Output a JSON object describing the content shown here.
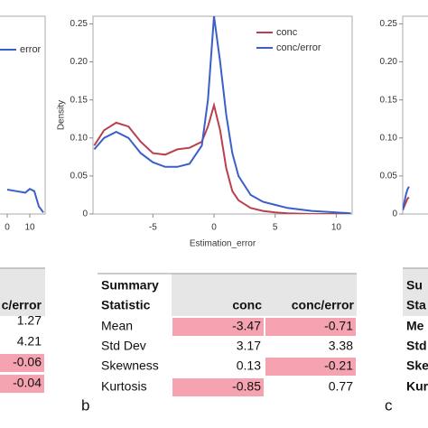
{
  "chart_data": [
    {
      "type": "line",
      "x": [
        0,
        4,
        8,
        10,
        12,
        14,
        16
      ],
      "series": [
        {
          "name": "error",
          "color": "#3a5fc8",
          "values": [
            0.032,
            0.03,
            0.028,
            0.033,
            0.03,
            0.01,
            0.002
          ]
        }
      ],
      "xlim": [
        -11.2,
        16.8
      ],
      "ylim": [
        0,
        0.26
      ],
      "xticks": [
        0,
        10
      ],
      "yticks": []
    },
    {
      "type": "line",
      "x_label": "Estimation_error",
      "y_label": "Density",
      "x": [
        -9.8,
        -9,
        -8,
        -7,
        -6,
        -5,
        -4,
        -3,
        -2,
        -1,
        -0.5,
        0,
        0.5,
        1,
        1.5,
        2,
        3,
        4,
        5,
        6,
        8,
        10,
        11.2
      ],
      "series": [
        {
          "name": "conc",
          "color": "#b8404f",
          "values": [
            0.09,
            0.11,
            0.12,
            0.115,
            0.095,
            0.08,
            0.078,
            0.085,
            0.087,
            0.095,
            0.115,
            0.143,
            0.11,
            0.06,
            0.03,
            0.018,
            0.008,
            0.004,
            0.002,
            0.001,
            0,
            0,
            0
          ]
        },
        {
          "name": "conc/error",
          "color": "#3a5fc8",
          "values": [
            0.085,
            0.1,
            0.108,
            0.1,
            0.08,
            0.068,
            0.062,
            0.062,
            0.066,
            0.09,
            0.15,
            0.26,
            0.2,
            0.13,
            0.08,
            0.05,
            0.025,
            0.016,
            0.012,
            0.008,
            0.004,
            0.002,
            0.001
          ]
        }
      ],
      "xlim": [
        -9.9,
        11.3
      ],
      "ylim": [
        0,
        0.26
      ],
      "xticks": [
        -5,
        0,
        5,
        10
      ],
      "yticks": [
        0,
        {
          "value": 0.05,
          "label": "0.05"
        },
        {
          "value": 0.1,
          "label": "0.10"
        },
        {
          "value": 0.15,
          "label": "0.15"
        },
        {
          "value": 0.2,
          "label": "0.20"
        },
        {
          "value": 0.25,
          "label": "0.25"
        }
      ]
    },
    {
      "type": "line",
      "x": [
        -10,
        -9.5,
        -9,
        -8.5,
        -8
      ],
      "series": [
        {
          "name": null,
          "color": "#b8404f",
          "values": [
            0.005,
            0.01,
            0.015,
            0.02,
            0.022
          ]
        },
        {
          "name": null,
          "color": "#3a5fc8",
          "values": [
            0.005,
            0.015,
            0.025,
            0.032,
            0.036
          ]
        }
      ],
      "xlim": [
        -10,
        11.3
      ],
      "ylim": [
        0,
        0.26
      ],
      "xticks": [],
      "yticks": [
        0,
        {
          "value": 0.05,
          "label": "0.05"
        },
        {
          "value": 0.1,
          "label": "0.10"
        },
        {
          "value": 0.15,
          "label": "0.15"
        },
        {
          "value": 0.2,
          "label": "0.20"
        },
        {
          "value": 0.25,
          "label": "0.25"
        }
      ]
    }
  ],
  "tables": [
    {
      "header": [
        "c/error"
      ],
      "rows": [
        [
          "1.27"
        ],
        [
          "4.21"
        ],
        [
          "-0.06"
        ],
        [
          "-0.04"
        ]
      ],
      "highlight": [
        [
          false
        ],
        [
          false
        ],
        [
          true
        ],
        [
          true
        ]
      ]
    },
    {
      "header": [
        "Summary",
        "Statistic",
        "conc",
        "conc/error"
      ],
      "rows": [
        [
          "Mean",
          "-3.47",
          "-0.71"
        ],
        [
          "Std Dev",
          "3.17",
          "3.38"
        ],
        [
          "Skewness",
          "0.13",
          "-0.21"
        ],
        [
          "Kurtosis",
          "-0.85",
          "0.77"
        ]
      ],
      "highlight": [
        [
          false,
          true,
          true
        ],
        [
          false,
          false,
          false
        ],
        [
          false,
          false,
          true
        ],
        [
          false,
          true,
          false
        ]
      ]
    },
    {
      "header": [
        "Su",
        "Sta"
      ],
      "rows": [
        [
          "Me"
        ],
        [
          "Std"
        ],
        [
          "Ske"
        ],
        [
          "Kur"
        ]
      ],
      "highlight": [
        [
          false
        ],
        [
          false
        ],
        [
          false
        ],
        [
          false
        ]
      ]
    }
  ],
  "panel_labels": [
    "b",
    "c"
  ]
}
